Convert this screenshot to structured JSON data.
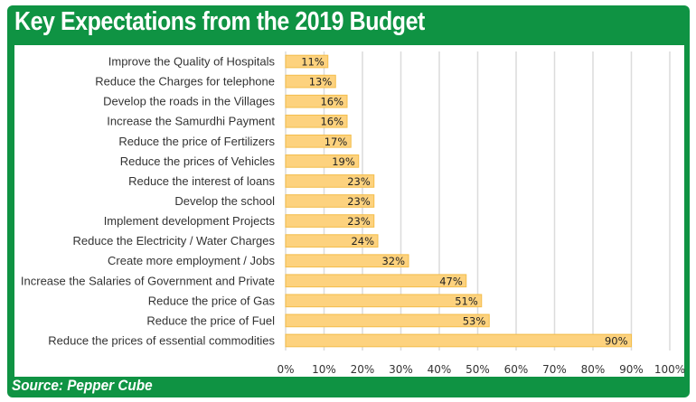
{
  "header": {
    "title": "Key Expectations from the 2019 Budget"
  },
  "footer": {
    "source": "Source: Pepper Cube"
  },
  "colors": {
    "frame": "#0f9343",
    "bar_fill": "#fdd27e",
    "bar_stroke": "#f3bd4a",
    "grid": "#dcdcdc"
  },
  "chart_data": {
    "type": "bar",
    "orientation": "horizontal",
    "title": "Key Expectations from the 2019 Budget",
    "xlabel": "",
    "ylabel": "",
    "xlim": [
      0,
      100
    ],
    "grid": true,
    "legend": "none",
    "x_ticks": [
      "0%",
      "10%",
      "20%",
      "30%",
      "40%",
      "50%",
      "60%",
      "70%",
      "80%",
      "90%",
      "100%"
    ],
    "categories": [
      "Improve the Quality of Hospitals",
      "Reduce the Charges for telephone",
      "Develop the roads in the Villages",
      "Increase the Samurdhi Payment",
      "Reduce the price of Fertilizers",
      "Reduce the prices of Vehicles",
      "Reduce the interest of loans",
      "Develop the school",
      "Implement development Projects",
      "Reduce the Electricity / Water Charges",
      "Create more employment / Jobs",
      "Increase the Salaries of Government and Private",
      "Reduce the price of Gas",
      "Reduce the price of Fuel",
      "Reduce the prices of essential commodities"
    ],
    "values": [
      11,
      13,
      16,
      16,
      17,
      19,
      23,
      23,
      23,
      24,
      32,
      47,
      51,
      53,
      90
    ],
    "data_labels": [
      "11%",
      "13%",
      "16%",
      "16%",
      "17%",
      "19%",
      "23%",
      "23%",
      "23%",
      "24%",
      "32%",
      "47%",
      "51%",
      "53%",
      "90%"
    ]
  }
}
